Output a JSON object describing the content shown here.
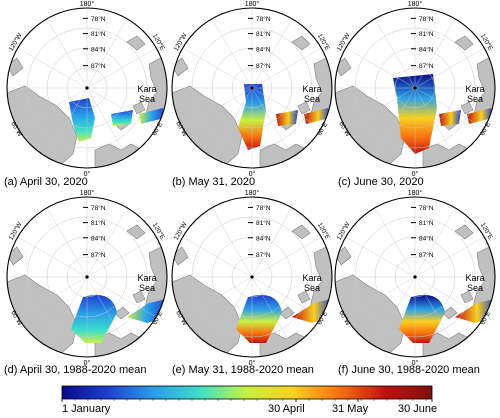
{
  "panels": [
    {
      "caption": "(a) April 30, 2020",
      "sea_label": "Kara Sea",
      "variant": "2020-apr"
    },
    {
      "caption": "(b) May 31, 2020",
      "sea_label": "Kara Sea",
      "variant": "2020-may"
    },
    {
      "caption": "(c) June 30,  2020",
      "sea_label": "Kara Sea",
      "variant": "2020-jun"
    },
    {
      "caption": "(d) April 30, 1988-2020 mean",
      "sea_label": "Kara Sea",
      "variant": "mean-apr"
    },
    {
      "caption": "(e) May 31, 1988-2020 mean",
      "sea_label": "Kara Sea",
      "variant": "mean-may"
    },
    {
      "caption": "(f) June 30, 1988-2020 mean",
      "sea_label": "Kara Sea",
      "variant": "mean-jun"
    }
  ],
  "map_labels": {
    "top": "180°",
    "bottom": "0°",
    "upper_left": "120°W",
    "lower_left": "60°W",
    "upper_right": "120°E",
    "lower_right": "60°E",
    "lat_78": "78°N",
    "lat_81": "81°N",
    "lat_84": "84°N",
    "lat_87": "87°N"
  },
  "colorbar": {
    "labels": [
      "1 January",
      "30 April",
      "31 May",
      "30 June"
    ],
    "stops": [
      "#0a0a8a",
      "#1f3fd0",
      "#2aa0e8",
      "#3fe0c8",
      "#c8f040",
      "#f8d020",
      "#f87010",
      "#c01010",
      "#801010"
    ]
  },
  "colors": {
    "land": "#c0c0c0",
    "land_edge": "#808080",
    "grid": "#c8c8c8"
  }
}
